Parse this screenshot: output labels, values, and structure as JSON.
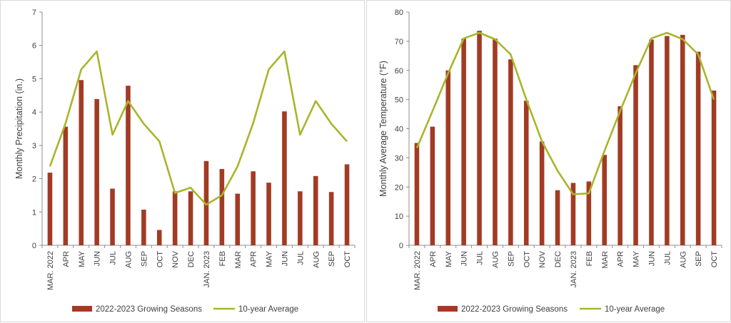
{
  "chart_data": [
    {
      "type": "bar",
      "categories": [
        "MAR. 2022",
        "APR",
        "MAY",
        "JUN",
        "JUL",
        "AUG",
        "SEP",
        "OCT",
        "NOV",
        "DEC",
        "JAN. 2023",
        "FEB",
        "MAR",
        "APR",
        "MAY",
        "JUN",
        "JUL",
        "AUG",
        "SEP",
        "OCT"
      ],
      "series": [
        {
          "name": "2022-2023 Growing Seasons",
          "type": "bar",
          "color": "#a23b24",
          "values": [
            2.18,
            3.56,
            4.96,
            4.39,
            1.7,
            4.79,
            1.07,
            0.46,
            1.62,
            1.62,
            2.53,
            2.29,
            1.55,
            2.22,
            1.88,
            4.02,
            1.62,
            2.08,
            1.6,
            2.43
          ]
        },
        {
          "name": "10-year Average",
          "type": "line",
          "color": "#a9b52b",
          "values": [
            2.37,
            3.66,
            5.28,
            5.82,
            3.32,
            4.33,
            3.65,
            3.12,
            1.57,
            1.73,
            1.22,
            1.5,
            2.37,
            3.66,
            5.28,
            5.82,
            3.32,
            4.33,
            3.65,
            3.12
          ]
        }
      ],
      "xlabel": "",
      "ylabel": "Monthly Precipitation (in.)",
      "ylim": [
        0,
        7
      ],
      "yticks": [
        "0",
        "1",
        "2",
        "3",
        "4",
        "5",
        "6",
        "7"
      ],
      "grid": false,
      "legend": "bottom"
    },
    {
      "type": "bar",
      "categories": [
        "MAR. 2022",
        "APR",
        "MAY",
        "JUN",
        "JUL",
        "AUG",
        "SEP",
        "OCT",
        "NOV",
        "DEC",
        "JAN. 2023",
        "FEB",
        "MAR",
        "APR",
        "MAY",
        "JUN",
        "JUL",
        "AUG",
        "SEP",
        "OCT"
      ],
      "series": [
        {
          "name": "2022-2023 Growing Seasons",
          "type": "bar",
          "color": "#a23b24",
          "values": [
            35.1,
            40.7,
            60.0,
            70.9,
            73.6,
            70.9,
            63.8,
            49.6,
            35.6,
            18.9,
            21.4,
            21.9,
            31.0,
            47.7,
            61.8,
            70.6,
            71.8,
            72.2,
            66.4,
            53.1
          ]
        },
        {
          "name": "10-year Average",
          "type": "line",
          "color": "#a9b52b",
          "values": [
            33.4,
            46.0,
            59.0,
            71.0,
            72.9,
            70.7,
            65.5,
            50.0,
            35.7,
            25.6,
            17.5,
            17.8,
            32.4,
            46.0,
            59.0,
            71.0,
            72.9,
            70.7,
            65.5,
            50.0
          ]
        }
      ],
      "xlabel": "",
      "ylabel": "Monthly Average Temperature (°F)",
      "ylim": [
        0,
        80
      ],
      "yticks": [
        "0",
        "10",
        "20",
        "30",
        "40",
        "50",
        "60",
        "70",
        "80"
      ],
      "grid": false,
      "legend": "bottom"
    }
  ]
}
